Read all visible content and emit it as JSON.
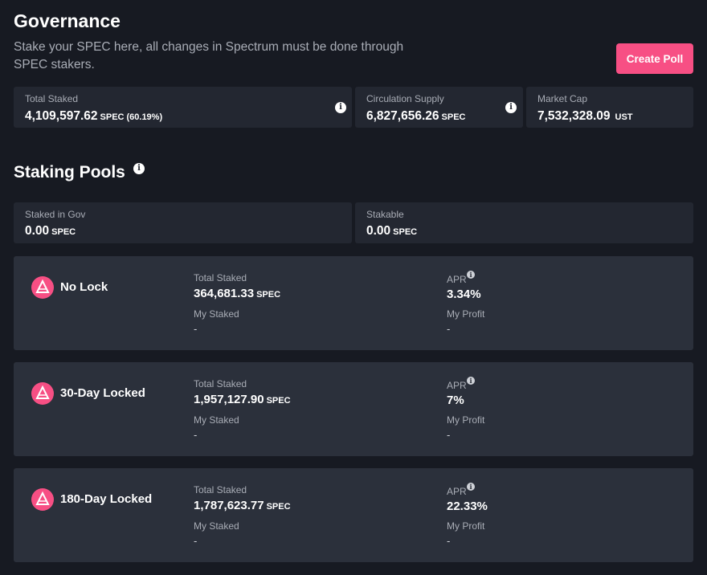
{
  "header": {
    "title": "Governance",
    "subtitle": "Stake your SPEC here, all changes in Spectrum must be done through SPEC stakers.",
    "create_poll_label": "Create Poll"
  },
  "stats": {
    "total_staked": {
      "label": "Total Staked",
      "value": "4,109,597.62",
      "unit": "SPEC",
      "percent": "(60.19%)"
    },
    "circulation_supply": {
      "label": "Circulation Supply",
      "value": "6,827,656.26",
      "unit": "SPEC"
    },
    "market_cap": {
      "label": "Market Cap",
      "value": "7,532,328.09",
      "unit": "UST"
    }
  },
  "staking": {
    "title": "Staking Pools",
    "staked_in_gov": {
      "label": "Staked in Gov",
      "value": "0.00",
      "unit": "SPEC"
    },
    "stakable": {
      "label": "Stakable",
      "value": "0.00",
      "unit": "SPEC"
    }
  },
  "pools": [
    {
      "name": "No Lock",
      "total_staked_label": "Total Staked",
      "total_staked": "364,681.33",
      "unit": "SPEC",
      "my_staked_label": "My Staked",
      "my_staked": "-",
      "apr_label": "APR",
      "apr": "3.34%",
      "my_profit_label": "My Profit",
      "my_profit": "-"
    },
    {
      "name": "30-Day Locked",
      "total_staked_label": "Total Staked",
      "total_staked": "1,957,127.90",
      "unit": "SPEC",
      "my_staked_label": "My Staked",
      "my_staked": "-",
      "apr_label": "APR",
      "apr": "7%",
      "my_profit_label": "My Profit",
      "my_profit": "-"
    },
    {
      "name": "180-Day Locked",
      "total_staked_label": "Total Staked",
      "total_staked": "1,787,623.77",
      "unit": "SPEC",
      "my_staked_label": "My Staked",
      "my_staked": "-",
      "apr_label": "APR",
      "apr": "22.33%",
      "my_profit_label": "My Profit",
      "my_profit": "-"
    }
  ],
  "icons": {
    "info": "info-icon",
    "pool_logo": "spectrum-logo-icon"
  },
  "colors": {
    "accent": "#f74f84",
    "background": "#171a22",
    "card": "#232731",
    "pool_card": "#2b303b"
  }
}
